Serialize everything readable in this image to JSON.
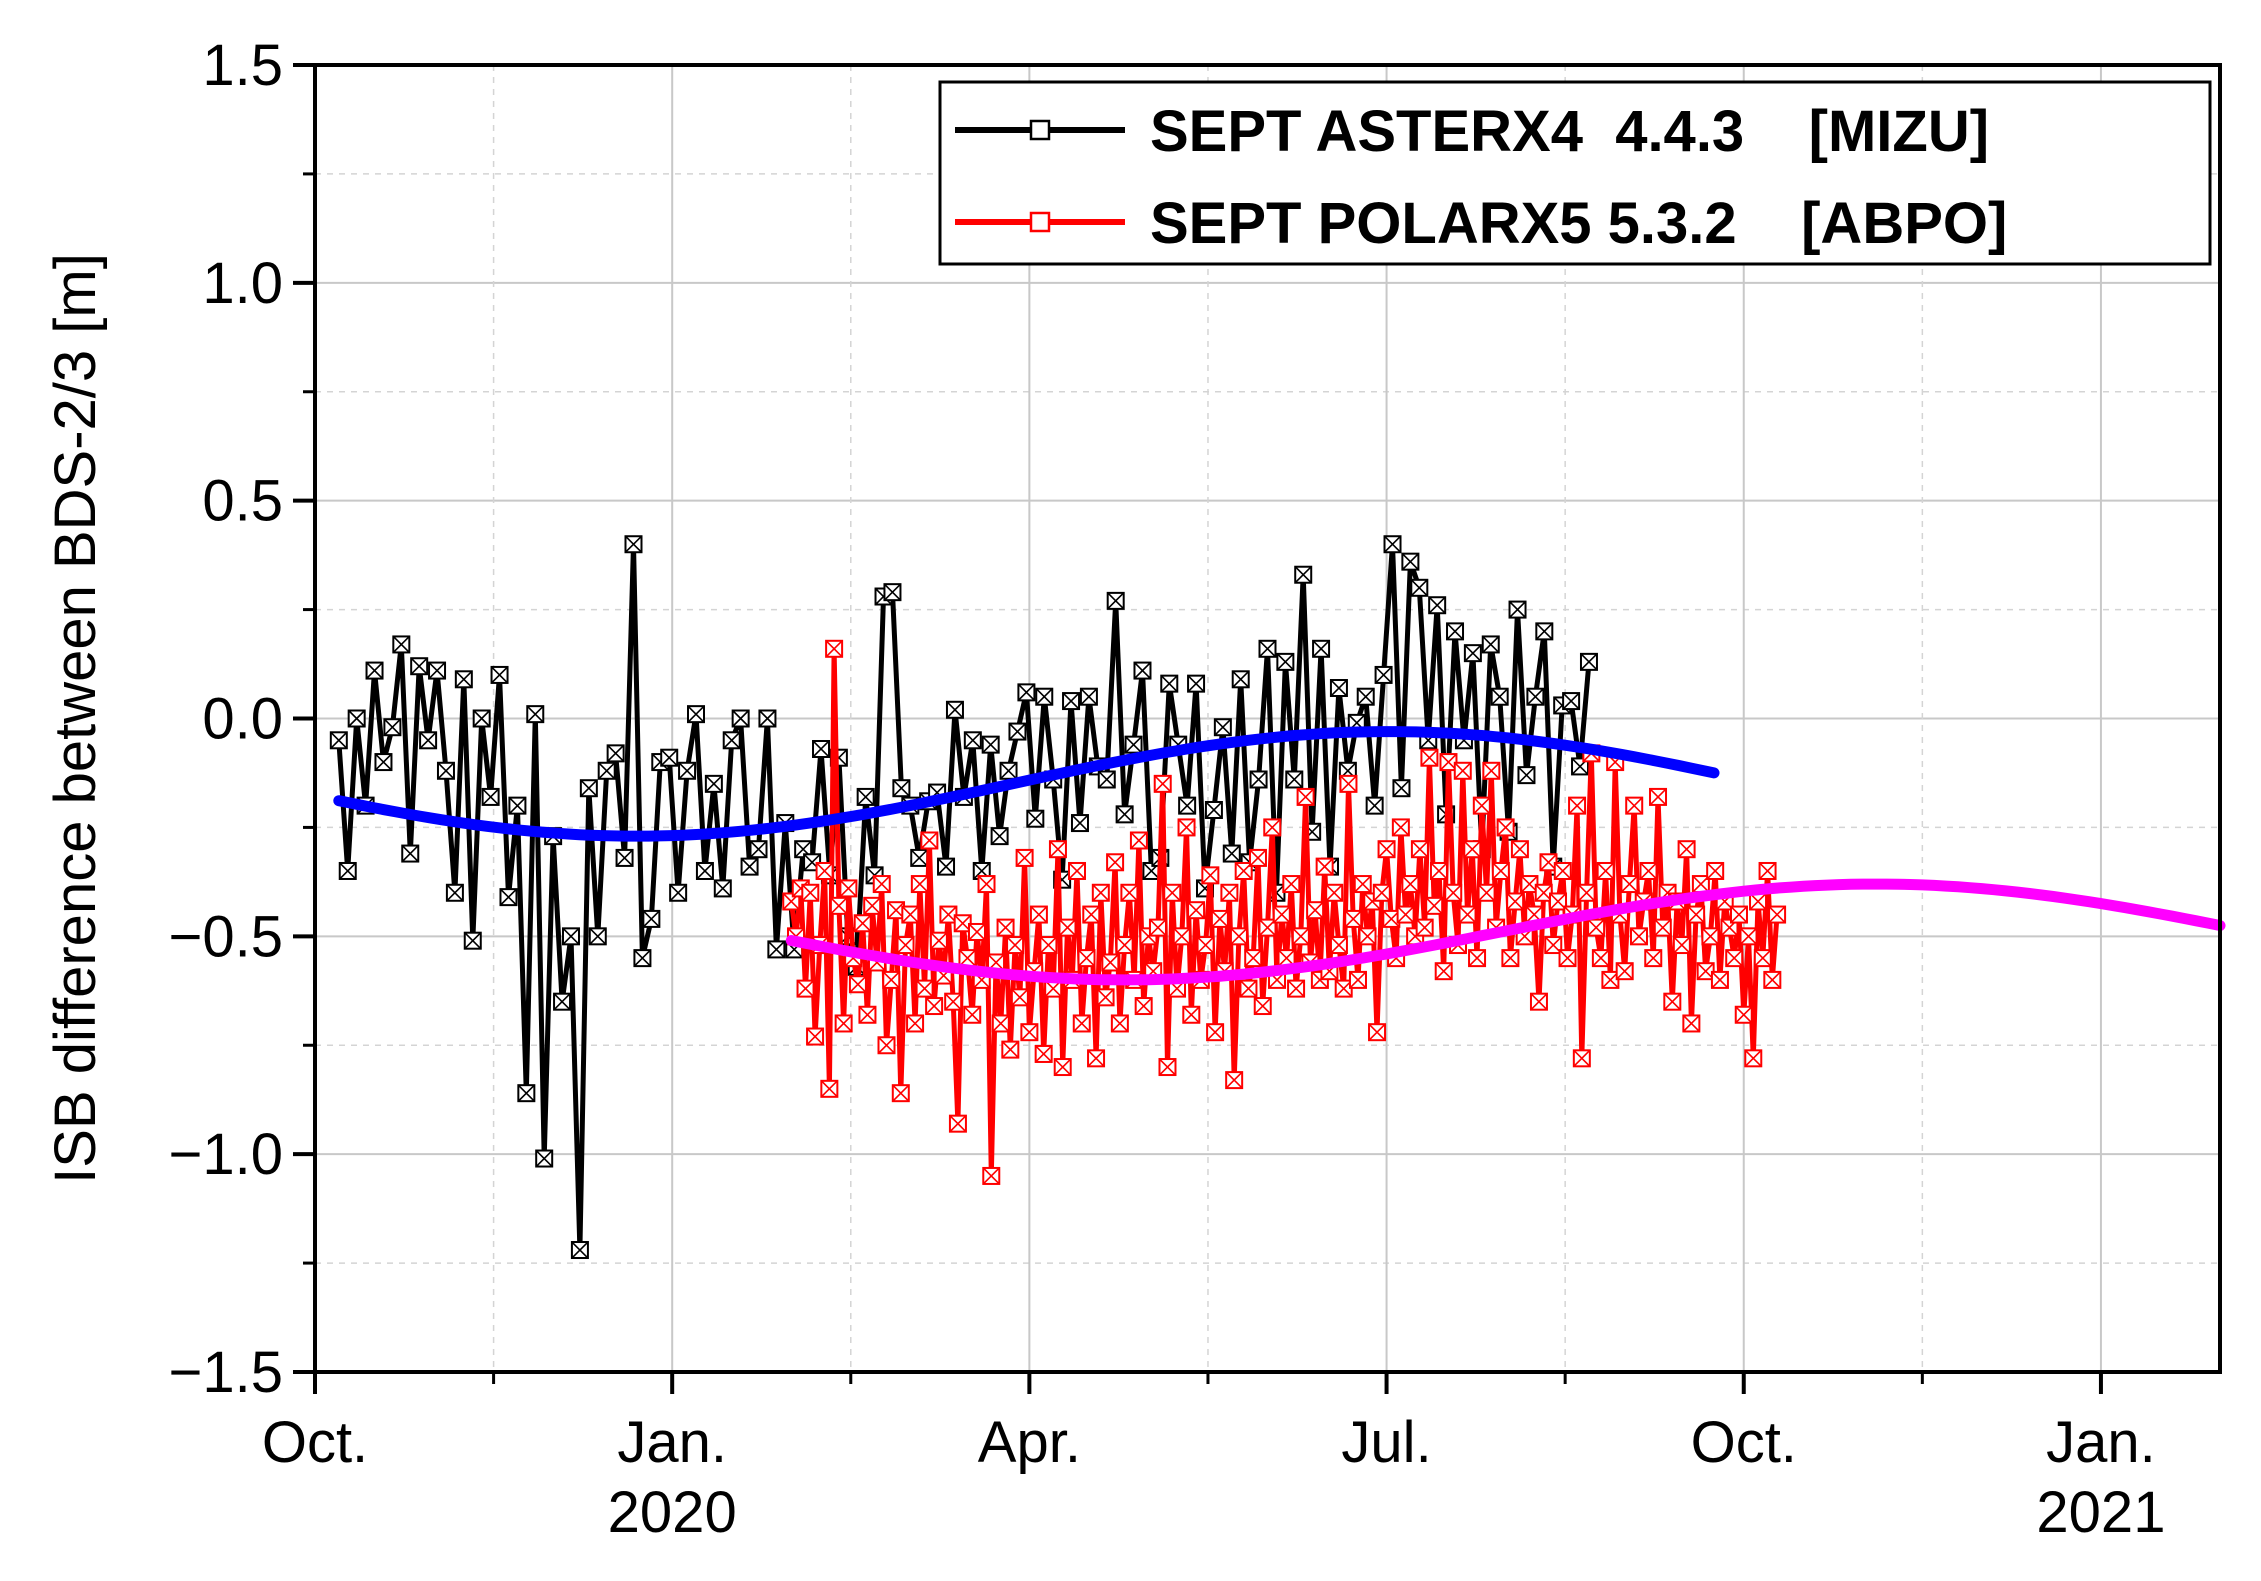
{
  "chart_data": {
    "type": "line",
    "title": "",
    "xlabel": "",
    "ylabel": "ISB difference between BDS-2/3 [m]",
    "ylim": [
      -1.5,
      1.5
    ],
    "xlim": [
      0,
      16
    ],
    "x_ticks": [
      {
        "x": 0,
        "label": "Oct.",
        "year": ""
      },
      {
        "x": 3,
        "label": "Jan.",
        "year": "2020"
      },
      {
        "x": 6,
        "label": "Apr.",
        "year": ""
      },
      {
        "x": 9,
        "label": "Jul.",
        "year": ""
      },
      {
        "x": 12,
        "label": "Oct.",
        "year": ""
      },
      {
        "x": 15,
        "label": "Jan.",
        "year": "2021"
      }
    ],
    "y_ticks": [
      -1.5,
      -1.0,
      -0.5,
      0.0,
      0.5,
      1.0,
      1.5
    ],
    "y_tick_labels": [
      "−1.5",
      "−1.0",
      "−0.5",
      "0.0",
      "0.5",
      "1.0",
      "1.5"
    ],
    "grid": true,
    "legend_position": "top-right",
    "series": [
      {
        "name": "SEPT ASTERX4  4.4.3    [MIZU]",
        "color": "#000000",
        "marker": "square-x",
        "x_start": 0.2,
        "x_step": 0.075,
        "values": [
          -0.05,
          -0.35,
          0.0,
          -0.2,
          0.11,
          -0.1,
          -0.02,
          0.17,
          -0.31,
          0.12,
          -0.05,
          0.11,
          -0.12,
          -0.4,
          0.09,
          -0.51,
          0.0,
          -0.18,
          0.1,
          -0.41,
          -0.2,
          -0.86,
          0.01,
          -1.01,
          -0.27,
          -0.65,
          -0.5,
          -1.22,
          -0.16,
          -0.5,
          -0.12,
          -0.08,
          -0.32,
          0.4,
          -0.55,
          -0.46,
          -0.1,
          -0.09,
          -0.4,
          -0.12,
          0.01,
          -0.35,
          -0.15,
          -0.39,
          -0.05,
          0.0,
          -0.34,
          -0.3,
          0.0,
          -0.53,
          -0.24,
          -0.53,
          -0.3,
          -0.33,
          -0.07,
          -0.36,
          -0.09,
          -0.5,
          -0.57,
          -0.18,
          -0.36,
          0.28,
          0.29,
          -0.16,
          -0.2,
          -0.32,
          -0.19,
          -0.17,
          -0.34,
          0.02,
          -0.18,
          -0.05,
          -0.35,
          -0.06,
          -0.27,
          -0.12,
          -0.03,
          0.06,
          -0.23,
          0.05,
          -0.14,
          -0.37,
          0.04,
          -0.24,
          0.05,
          -0.11,
          -0.14,
          0.27,
          -0.22,
          -0.06,
          0.11,
          -0.35,
          -0.32,
          0.08,
          -0.06,
          -0.2,
          0.08,
          -0.39,
          -0.21,
          -0.02,
          -0.31,
          0.09,
          -0.33,
          -0.14,
          0.16,
          -0.4,
          0.13,
          -0.14,
          0.33,
          -0.26,
          0.16,
          -0.34,
          0.07,
          -0.12,
          -0.01,
          0.05,
          -0.2,
          0.1,
          0.4,
          -0.16,
          0.36,
          0.3,
          -0.05,
          0.26,
          -0.22,
          0.2,
          -0.05,
          0.15,
          -0.3,
          0.17,
          0.05,
          -0.26,
          0.25,
          -0.13,
          0.05,
          0.2,
          -0.34,
          0.03,
          0.04,
          -0.11,
          0.13
        ]
      },
      {
        "name": "SEPT POLARX5 5.3.2    [ABPO]",
        "color": "#ff0000",
        "marker": "square-x",
        "x_start": 4.0,
        "x_step": 0.04,
        "values": [
          -0.42,
          -0.5,
          -0.39,
          -0.62,
          -0.4,
          -0.73,
          -0.52,
          -0.35,
          -0.85,
          0.16,
          -0.43,
          -0.7,
          -0.39,
          -0.55,
          -0.61,
          -0.47,
          -0.68,
          -0.43,
          -0.56,
          -0.38,
          -0.75,
          -0.6,
          -0.44,
          -0.86,
          -0.52,
          -0.45,
          -0.7,
          -0.38,
          -0.62,
          -0.28,
          -0.66,
          -0.51,
          -0.59,
          -0.45,
          -0.65,
          -0.93,
          -0.47,
          -0.55,
          -0.68,
          -0.49,
          -0.6,
          -0.38,
          -1.05,
          -0.56,
          -0.7,
          -0.48,
          -0.76,
          -0.52,
          -0.64,
          -0.32,
          -0.72,
          -0.58,
          -0.45,
          -0.77,
          -0.52,
          -0.62,
          -0.3,
          -0.8,
          -0.48,
          -0.6,
          -0.35,
          -0.7,
          -0.55,
          -0.45,
          -0.78,
          -0.4,
          -0.64,
          -0.56,
          -0.33,
          -0.7,
          -0.52,
          -0.4,
          -0.6,
          -0.28,
          -0.66,
          -0.5,
          -0.58,
          -0.48,
          -0.15,
          -0.8,
          -0.4,
          -0.62,
          -0.5,
          -0.25,
          -0.68,
          -0.44,
          -0.6,
          -0.52,
          -0.36,
          -0.72,
          -0.46,
          -0.58,
          -0.4,
          -0.83,
          -0.5,
          -0.35,
          -0.62,
          -0.55,
          -0.32,
          -0.66,
          -0.48,
          -0.25,
          -0.6,
          -0.45,
          -0.55,
          -0.38,
          -0.62,
          -0.5,
          -0.18,
          -0.56,
          -0.44,
          -0.6,
          -0.34,
          -0.58,
          -0.4,
          -0.52,
          -0.62,
          -0.15,
          -0.46,
          -0.6,
          -0.38,
          -0.5,
          -0.42,
          -0.72,
          -0.4,
          -0.3,
          -0.46,
          -0.55,
          -0.25,
          -0.45,
          -0.38,
          -0.5,
          -0.3,
          -0.48,
          -0.09,
          -0.43,
          -0.35,
          -0.58,
          -0.1,
          -0.4,
          -0.52,
          -0.12,
          -0.45,
          -0.3,
          -0.55,
          -0.2,
          -0.4,
          -0.12,
          -0.48,
          -0.35,
          -0.25,
          -0.55,
          -0.42,
          -0.3,
          -0.5,
          -0.38,
          -0.45,
          -0.65,
          -0.4,
          -0.33,
          -0.52,
          -0.42,
          -0.35,
          -0.55,
          -0.45,
          -0.2,
          -0.78,
          -0.4,
          -0.08,
          -0.48,
          -0.55,
          -0.35,
          -0.6,
          -0.1,
          -0.45,
          -0.58,
          -0.38,
          -0.2,
          -0.5,
          -0.42,
          -0.35,
          -0.55,
          -0.18,
          -0.48,
          -0.4,
          -0.65,
          -0.42,
          -0.52,
          -0.3,
          -0.7,
          -0.45,
          -0.38,
          -0.58,
          -0.5,
          -0.35,
          -0.6,
          -0.42,
          -0.48,
          -0.55,
          -0.45,
          -0.68,
          -0.5,
          -0.78,
          -0.42,
          -0.55,
          -0.35,
          -0.6,
          -0.45
        ]
      }
    ],
    "trend_lines": [
      {
        "name": "MIZU trend",
        "color": "#0000ff",
        "x_range": [
          0.2,
          11.75
        ],
        "mean": -0.15,
        "amplitude": 0.12,
        "phase": 0.0
      }
    ],
    "trend_lines_extra": [
      {
        "name": "ABPO trend",
        "color": "#ff00ff",
        "x_range": [
          4.0,
          16.0
        ],
        "mean": -0.49,
        "amplitude": 0.11,
        "phase": 0.0
      }
    ]
  }
}
